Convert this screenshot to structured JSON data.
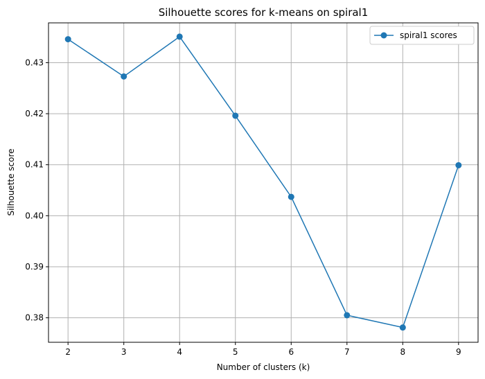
{
  "chart_data": {
    "type": "line",
    "title": "Silhouette scores for k-means on spiral1",
    "xlabel": "Number of clusters (k)",
    "ylabel": "Silhouette score",
    "x": [
      2,
      3,
      4,
      5,
      6,
      7,
      8,
      9
    ],
    "xticks": [
      "2",
      "3",
      "4",
      "5",
      "6",
      "7",
      "8",
      "9"
    ],
    "yticks": [
      "0.38",
      "0.39",
      "0.40",
      "0.41",
      "0.42",
      "0.43"
    ],
    "ytick_values": [
      0.38,
      0.39,
      0.4,
      0.41,
      0.42,
      0.43
    ],
    "xlim": [
      1.65,
      9.35
    ],
    "ylim": [
      0.3752,
      0.4378
    ],
    "grid": true,
    "legend_position": "top-right",
    "series": [
      {
        "name": "spiral1 scores",
        "color": "#1f77b4",
        "marker": "circle",
        "values": [
          0.4346,
          0.4273,
          0.4351,
          0.4196,
          0.4037,
          0.3805,
          0.3781,
          0.4099
        ]
      }
    ]
  }
}
